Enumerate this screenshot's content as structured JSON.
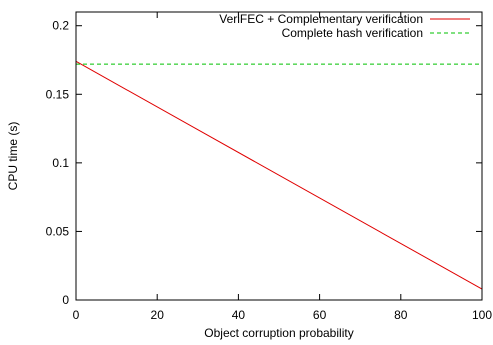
{
  "chart_data": {
    "type": "line",
    "title": "",
    "xlabel": "Object corruption probability",
    "ylabel": "CPU time (s)",
    "xlim": [
      0,
      100
    ],
    "ylim": [
      0,
      0.21
    ],
    "x_ticks": [
      0,
      20,
      40,
      60,
      80,
      100
    ],
    "x_tick_labels": [
      "0",
      "20",
      "40",
      "60",
      "80",
      "100"
    ],
    "y_ticks": [
      0,
      0.05,
      0.1,
      0.15,
      0.2
    ],
    "y_tick_labels": [
      "0",
      "0.05",
      "0.1",
      "0.15",
      "0.2"
    ],
    "grid": false,
    "legend_position": "top-right",
    "series": [
      {
        "name": "VeriFEC + Complementary verification",
        "color": "#e00000",
        "dash": "solid",
        "x": [
          0,
          100
        ],
        "y": [
          0.174,
          0.008
        ]
      },
      {
        "name": "Complete hash verification",
        "color": "#00c000",
        "dash": "dashed",
        "x": [
          0,
          100
        ],
        "y": [
          0.172,
          0.172
        ]
      }
    ]
  }
}
